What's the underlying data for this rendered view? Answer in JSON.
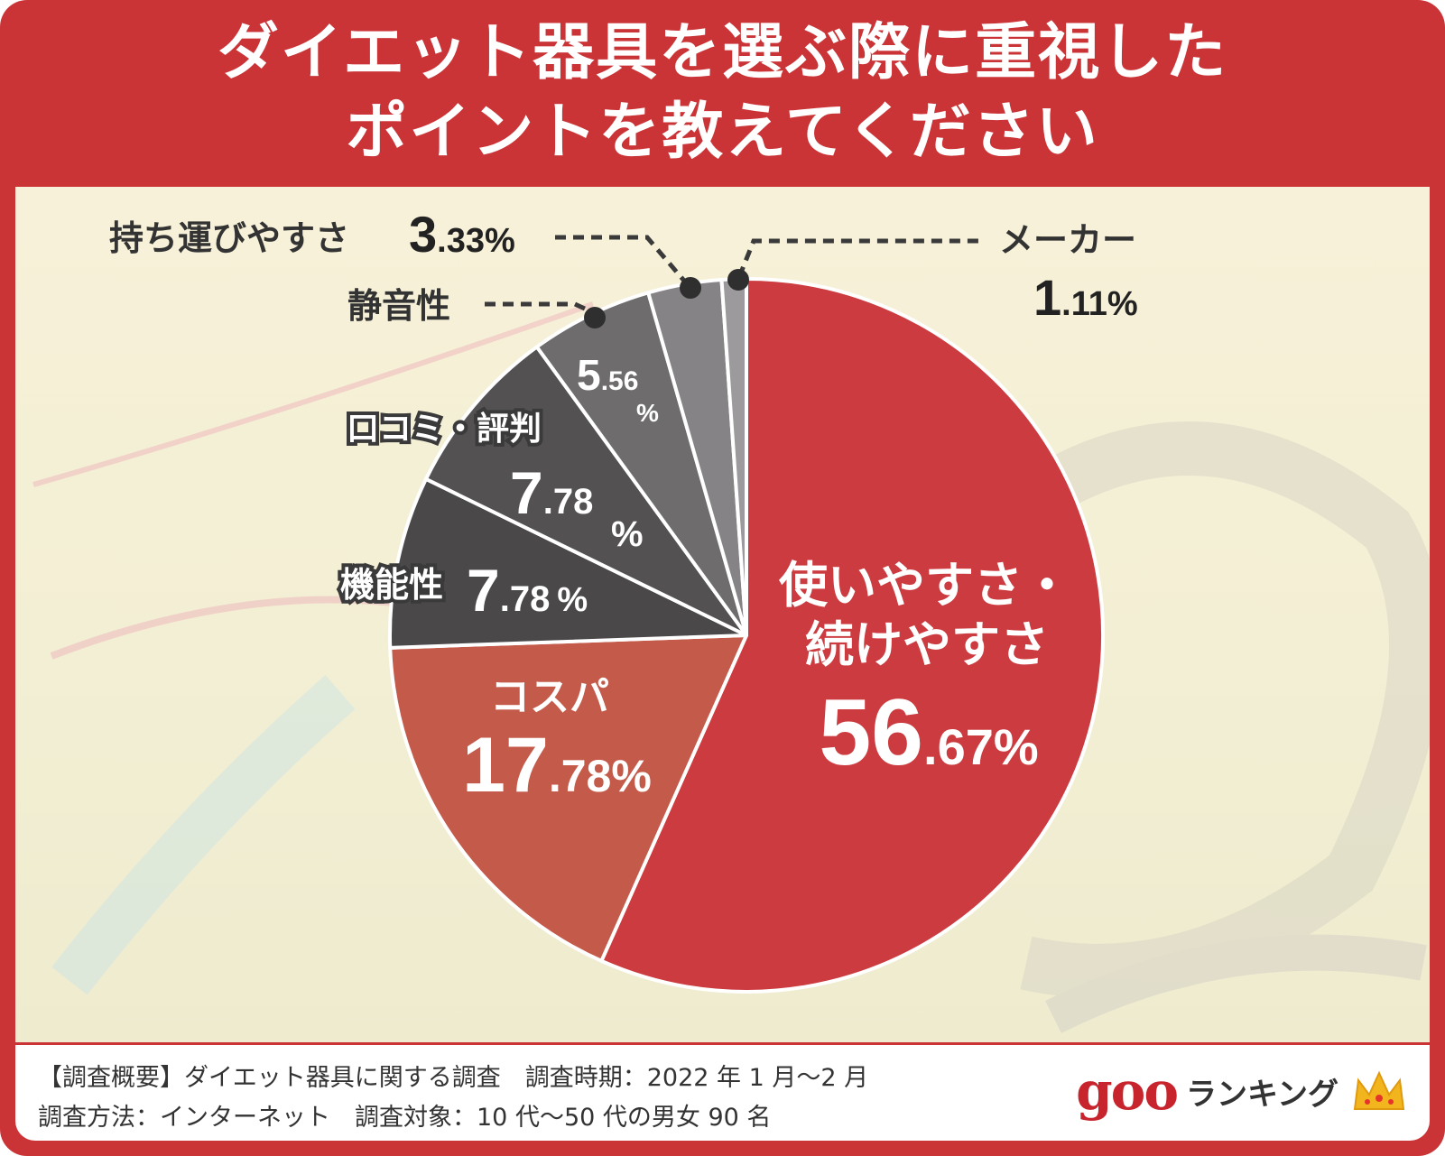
{
  "title": {
    "line1": "ダイエット器具を選ぶ際に重視した",
    "line2": "ポイントを教えてください"
  },
  "chart_data": {
    "type": "pie",
    "title": "ダイエット器具を選ぶ際に重視したポイントを教えてください",
    "unit": "%",
    "slices": [
      {
        "label": "使いやすさ・続けやすさ",
        "value": 56.67,
        "color": "#cc3b3f"
      },
      {
        "label": "コスパ",
        "value": 17.78,
        "color": "#c45a4a"
      },
      {
        "label": "機能性",
        "value": 7.78,
        "color": "#4b484a"
      },
      {
        "label": "口コミ・評判",
        "value": 7.78,
        "color": "#545153"
      },
      {
        "label": "静音性",
        "value": 5.56,
        "color": "#6f6c6e"
      },
      {
        "label": "持ち運びやすさ",
        "value": 3.33,
        "color": "#858385"
      },
      {
        "label": "メーカー",
        "value": 1.11,
        "color": "#9c9a9c"
      }
    ]
  },
  "labels": {
    "s0_line1": "使いやすさ・",
    "s0_line2": "続けやすさ",
    "s0_int": "56",
    "s0_dec": ".67%",
    "s1_name": "コスパ",
    "s1_int": "17",
    "s1_dec": ".78%",
    "s2_name": "機能性",
    "s2_int": "7",
    "s2_dec": ".78",
    "s2_pct": "%",
    "s3_name": "口コミ・評判",
    "s3_int": "7",
    "s3_dec": ".78",
    "s3_pct": "%",
    "s4_name": "静音性",
    "s4_int": "5",
    "s4_dec": ".56",
    "s4_pct": "%",
    "s5_name": "持ち運びやすさ",
    "s5_int": "3",
    "s5_dec": ".33%",
    "s6_name": "メーカー",
    "s6_int": "1",
    "s6_dec": ".11%"
  },
  "footer": {
    "line1": "【調査概要】ダイエット器具に関する調査　調査時期：2022 年 1 月〜2 月",
    "line2": "調査方法：インターネット　調査対象：10 代〜50 代の男女 90 名"
  },
  "logo": {
    "word": "goo",
    "suffix": "ランキング"
  }
}
